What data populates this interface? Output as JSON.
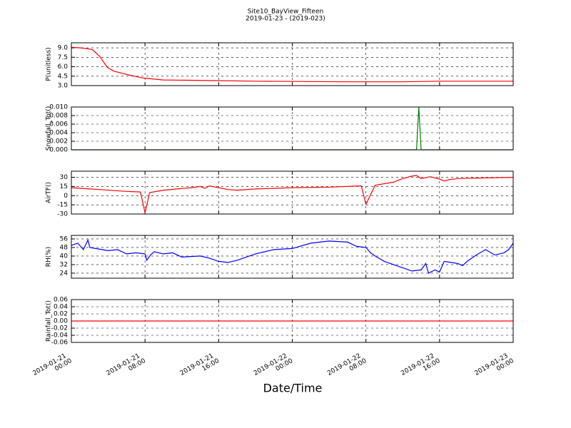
{
  "title": "Site10_BayView_Fifteen",
  "subtitle": "2019-01-23 - (2019-023)",
  "xlabel": "Date/Time",
  "xlim": [
    "2019-01-21 00:00",
    "2019-01-23 00:00"
  ],
  "xticks": [
    {
      "value": "2019-01-21 00:00",
      "label": [
        "2019-01-21",
        "00:00"
      ]
    },
    {
      "value": "2019-01-21 08:00",
      "label": [
        "2019-01-21",
        "08:00"
      ]
    },
    {
      "value": "2019-01-21 16:00",
      "label": [
        "2019-01-21",
        "16:00"
      ]
    },
    {
      "value": "2019-01-22 00:00",
      "label": [
        "2019-01-22",
        "00:00"
      ]
    },
    {
      "value": "2019-01-22 08:00",
      "label": [
        "2019-01-22",
        "08:00"
      ]
    },
    {
      "value": "2019-01-22 16:00",
      "label": [
        "2019-01-22",
        "16:00"
      ]
    },
    {
      "value": "2019-01-23 00:00",
      "label": [
        "2019-01-23",
        "00:00"
      ]
    }
  ],
  "chart_data": [
    {
      "type": "line",
      "ylabel": "P(unitless)",
      "color": "#ff0000",
      "grid": true,
      "ylim": [
        3.0,
        9.8
      ],
      "yticks": [
        {
          "value": 3,
          "label": "3.0"
        },
        4.5,
        {
          "value": 6,
          "label": "6.0"
        },
        7.5,
        {
          "value": 9,
          "label": "9.0"
        }
      ],
      "x": [
        "2019-01-21 00:00",
        "2019-01-21 01:00",
        "2019-01-21 02:00",
        "2019-01-21 02:18",
        "2019-01-21 03:06",
        "2019-01-21 03:54",
        "2019-01-21 04:36",
        "2019-01-21 06:12",
        "2019-01-21 07:48",
        "2019-01-21 10:00",
        "2019-01-21 15:00",
        "2019-01-21 20:00",
        "2019-01-22 06:00",
        "2019-01-22 12:00",
        "2019-01-22 16:00",
        "2019-01-23 00:00"
      ],
      "values": [
        9.1,
        9.0,
        8.8,
        8.7,
        7.6,
        5.9,
        5.3,
        4.7,
        4.2,
        3.9,
        3.8,
        3.7,
        3.6,
        3.6,
        3.7,
        3.7
      ]
    },
    {
      "type": "line",
      "ylabel": "Snowfall_Tot()",
      "color": "#008000",
      "grid": true,
      "ylim": [
        0,
        0.01
      ],
      "yticks": [
        {
          "value": 0,
          "label": "0.000"
        },
        {
          "value": 0.002,
          "label": "0.002"
        },
        {
          "value": 0.004,
          "label": "0.004"
        },
        {
          "value": 0.006,
          "label": "0.006"
        },
        {
          "value": 0.008,
          "label": "0.008"
        },
        {
          "value": 0.01,
          "label": "0.010"
        }
      ],
      "x": [
        "2019-01-21 00:00",
        "2019-01-22 13:30",
        "2019-01-22 13:45",
        "2019-01-22 14:00",
        "2019-01-23 00:00"
      ],
      "values": [
        0,
        0,
        0.01,
        0,
        0
      ]
    },
    {
      "type": "line",
      "ylabel": "AirTF()",
      "color": "#ff0000",
      "grid": true,
      "ylim": [
        -30,
        40
      ],
      "yticks": [
        -30,
        -15,
        0,
        15,
        30
      ],
      "x": [
        "2019-01-21 00:00",
        "2019-01-21 03:00",
        "2019-01-21 06:00",
        "2019-01-21 07:30",
        "2019-01-21 08:00",
        "2019-01-21 08:30",
        "2019-01-21 10:00",
        "2019-01-21 13:00",
        "2019-01-21 14:00",
        "2019-01-21 14:30",
        "2019-01-21 15:00",
        "2019-01-21 17:00",
        "2019-01-21 18:00",
        "2019-01-21 20:00",
        "2019-01-22 00:00",
        "2019-01-22 04:00",
        "2019-01-22 07:30",
        "2019-01-22 08:00",
        "2019-01-22 09:00",
        "2019-01-22 11:00",
        "2019-01-22 12:00",
        "2019-01-22 13:00",
        "2019-01-22 13:30",
        "2019-01-22 14:00",
        "2019-01-22 15:00",
        "2019-01-22 16:00",
        "2019-01-22 16:30",
        "2019-01-22 17:00",
        "2019-01-22 18:00",
        "2019-01-22 21:00",
        "2019-01-23 00:00"
      ],
      "values": [
        13,
        10,
        7,
        6,
        -28,
        5,
        9,
        13,
        15,
        12,
        16,
        10,
        9,
        11,
        13,
        14,
        16,
        -14,
        17,
        22,
        28,
        32,
        33,
        28,
        31,
        27,
        24,
        26,
        28,
        29,
        30
      ]
    },
    {
      "type": "line",
      "ylabel": "RH(%)",
      "color": "#0000ff",
      "grid": true,
      "ylim": [
        19.3,
        59.3
      ],
      "yticks": [
        24,
        32,
        40,
        48,
        56
      ],
      "x": [
        "2019-01-21 00:00",
        "2019-01-21 00:42",
        "2019-01-21 01:18",
        "2019-01-21 01:48",
        "2019-01-21 02:00",
        "2019-01-21 04:00",
        "2019-01-21 05:00",
        "2019-01-21 06:00",
        "2019-01-21 07:00",
        "2019-01-21 08:00",
        "2019-01-21 08:12",
        "2019-01-21 08:36",
        "2019-01-21 09:00",
        "2019-01-21 10:00",
        "2019-01-21 11:00",
        "2019-01-21 12:00",
        "2019-01-21 14:00",
        "2019-01-21 15:00",
        "2019-01-21 16:00",
        "2019-01-21 17:00",
        "2019-01-21 18:00",
        "2019-01-21 20:00",
        "2019-01-21 22:00",
        "2019-01-22 00:00",
        "2019-01-22 02:00",
        "2019-01-22 04:00",
        "2019-01-22 06:00",
        "2019-01-22 07:00",
        "2019-01-22 08:00",
        "2019-01-22 08:30",
        "2019-01-22 09:00",
        "2019-01-22 10:00",
        "2019-01-22 11:00",
        "2019-01-22 12:00",
        "2019-01-22 13:00",
        "2019-01-22 14:00",
        "2019-01-22 14:30",
        "2019-01-22 14:48",
        "2019-01-22 15:30",
        "2019-01-22 16:00",
        "2019-01-22 16:30",
        "2019-01-22 18:00",
        "2019-01-22 18:30",
        "2019-01-22 19:00",
        "2019-01-22 20:00",
        "2019-01-22 21:00",
        "2019-01-22 22:00",
        "2019-01-22 23:00",
        "2019-01-22 23:30",
        "2019-01-23 00:00"
      ],
      "values": [
        50,
        52,
        46,
        55,
        48,
        45,
        46,
        42,
        43,
        42,
        36,
        41,
        44,
        42,
        43,
        39,
        40,
        38,
        35,
        34,
        36,
        42,
        46,
        47,
        52,
        54,
        53,
        49,
        48,
        43,
        40,
        35,
        32,
        29,
        26,
        27,
        33,
        24,
        27,
        25,
        35,
        33,
        31,
        35,
        41,
        46,
        41,
        43,
        46,
        52
      ]
    },
    {
      "type": "line",
      "ylabel": "Rainfall_Tot()",
      "color": "#ff0000",
      "grid": true,
      "ylim": [
        -0.06,
        0.06
      ],
      "yticks": [
        -0.06,
        -0.04,
        -0.02,
        {
          "value": 0,
          "label": "0.00"
        },
        0.02,
        0.04,
        0.06
      ],
      "x": [
        "2019-01-21 00:00",
        "2019-01-23 00:00"
      ],
      "values": [
        0,
        0
      ]
    }
  ]
}
